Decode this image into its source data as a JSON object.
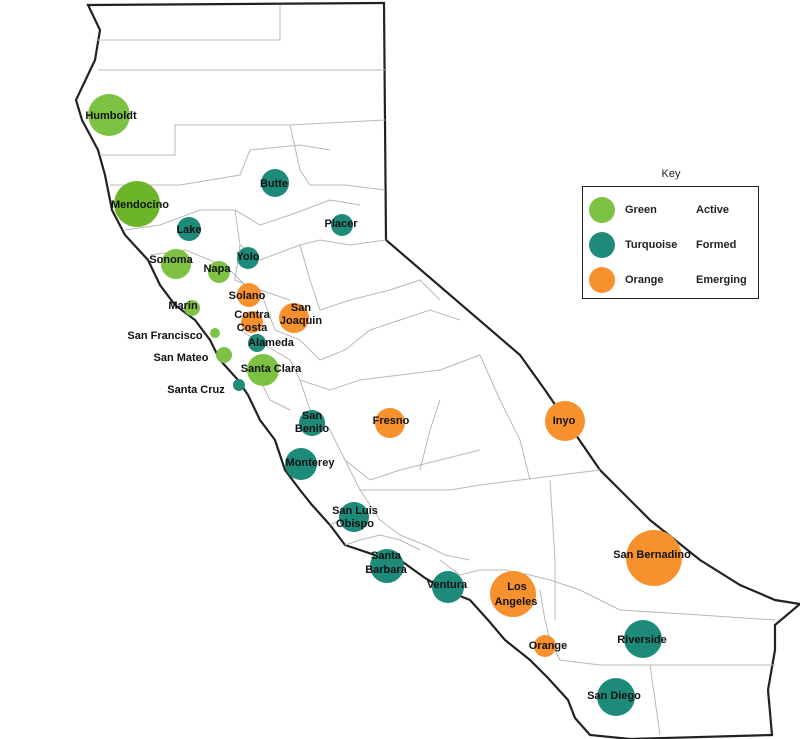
{
  "colors": {
    "green": "#7dc242",
    "green_dark": "#6cb52a",
    "turquoise": "#1e8a7a",
    "orange": "#f7912d",
    "outline": "#222222",
    "county_line": "#b8b8b8"
  },
  "key": {
    "title": "Key",
    "items": [
      {
        "color_name": "Green",
        "status": "Active",
        "color_key": "green"
      },
      {
        "color_name": "Turquoise",
        "status": "Formed",
        "color_key": "turquoise"
      },
      {
        "color_name": "Orange",
        "status": "Emerging",
        "color_key": "orange"
      }
    ]
  },
  "counties": [
    {
      "name": "Humboldt",
      "status": "Active"
    },
    {
      "name": "Mendocino",
      "status": "Active"
    },
    {
      "name": "Lake",
      "status": "Formed"
    },
    {
      "name": "Sonoma",
      "status": "Active"
    },
    {
      "name": "Napa",
      "status": "Active"
    },
    {
      "name": "Butte",
      "status": "Formed"
    },
    {
      "name": "Placer",
      "status": "Formed"
    },
    {
      "name": "Yolo",
      "status": "Formed"
    },
    {
      "name": "Solano",
      "status": "Emerging"
    },
    {
      "name": "Marin",
      "status": "Active"
    },
    {
      "name": "San Joaquin",
      "status": "Emerging"
    },
    {
      "name": "Contra Costa",
      "status": "Emerging"
    },
    {
      "name": "San Francisco",
      "status": "Active"
    },
    {
      "name": "Alameda",
      "status": "Formed"
    },
    {
      "name": "San Mateo",
      "status": "Active"
    },
    {
      "name": "Santa Clara",
      "status": "Active"
    },
    {
      "name": "Santa Cruz",
      "status": "Formed"
    },
    {
      "name": "San Benito",
      "status": "Formed"
    },
    {
      "name": "Fresno",
      "status": "Emerging"
    },
    {
      "name": "Inyo",
      "status": "Emerging"
    },
    {
      "name": "Monterey",
      "status": "Formed"
    },
    {
      "name": "San Luis Obispo",
      "status": "Formed"
    },
    {
      "name": "Santa Barbara",
      "status": "Formed"
    },
    {
      "name": "Ventura",
      "status": "Formed"
    },
    {
      "name": "Los Angeles",
      "status": "Emerging"
    },
    {
      "name": "San Bernadino",
      "status": "Emerging"
    },
    {
      "name": "Orange",
      "status": "Emerging"
    },
    {
      "name": "Riverside",
      "status": "Formed"
    },
    {
      "name": "San Diego",
      "status": "Formed"
    }
  ]
}
